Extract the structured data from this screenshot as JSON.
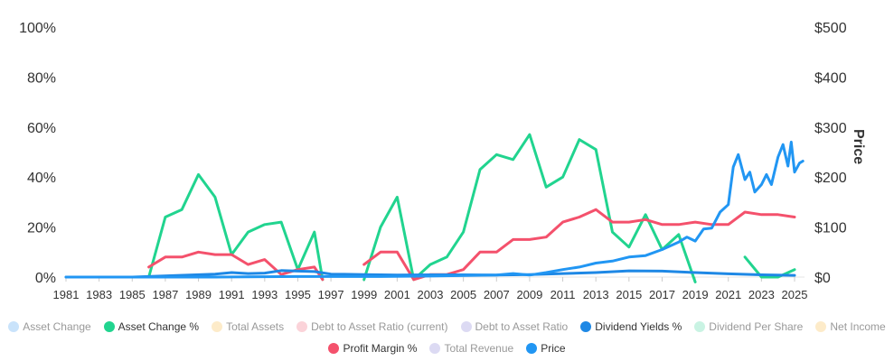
{
  "chart_data": {
    "type": "line",
    "title": "",
    "left_axis": {
      "ticks": [
        "0%",
        "20%",
        "40%",
        "60%",
        "80%",
        "100%"
      ],
      "ylim": [
        0,
        100
      ]
    },
    "right_axis": {
      "label": "Price",
      "ticks": [
        "$0",
        "$100",
        "$200",
        "$300",
        "$400",
        "$500"
      ],
      "ylim": [
        0,
        500
      ]
    },
    "x_ticks": [
      "1981",
      "1983",
      "1985",
      "1987",
      "1989",
      "1991",
      "1993",
      "1995",
      "1997",
      "1999",
      "2001",
      "2003",
      "2005",
      "2007",
      "2009",
      "2011",
      "2013",
      "2015",
      "2017",
      "2019",
      "2021",
      "2023",
      "2025"
    ],
    "xlim": [
      1981,
      2025.6
    ],
    "series": [
      {
        "name": "Asset Change %",
        "color": "#21d48f",
        "axis": "left",
        "x": [
          1986,
          1987,
          1988,
          1989,
          1990,
          1991,
          1992,
          1993,
          1994,
          1995,
          1996,
          1996.5,
          1997,
          1998,
          1999,
          2000,
          2001,
          2002,
          2003,
          2004,
          2005,
          2006,
          2007,
          2008,
          2009,
          2010,
          2011,
          2012,
          2013,
          2014,
          2015,
          2016,
          2017,
          2018,
          2019,
          2020,
          2021,
          2022,
          2023,
          2024,
          2025
        ],
        "y": [
          0,
          24,
          27,
          41,
          32,
          9,
          18,
          21,
          22,
          3,
          18,
          -1,
          null,
          null,
          -1,
          20,
          32,
          -1,
          5,
          8,
          18,
          43,
          49,
          47,
          57,
          36,
          40,
          55,
          51,
          18,
          12,
          25,
          11,
          17,
          -2,
          null,
          null,
          8,
          0,
          0,
          3
        ]
      },
      {
        "name": "Profit Margin %",
        "color": "#f4516c",
        "axis": "left",
        "x": [
          1986,
          1987,
          1988,
          1989,
          1990,
          1991,
          1992,
          1993,
          1994,
          1995,
          1996,
          1996.5,
          1997,
          1998,
          1999,
          2000,
          2001,
          2002,
          2003,
          2004,
          2005,
          2006,
          2007,
          2008,
          2009,
          2010,
          2011,
          2012,
          2013,
          2014,
          2015,
          2016,
          2017,
          2018,
          2019,
          2020,
          2021,
          2022,
          2023,
          2024,
          2025
        ],
        "y": [
          4,
          8,
          8,
          10,
          9,
          9,
          5,
          7,
          1,
          3,
          4,
          -1,
          null,
          null,
          5,
          10,
          10,
          -1,
          1,
          1,
          3,
          10,
          10,
          15,
          15,
          16,
          22,
          24,
          27,
          22,
          22,
          23,
          21,
          21,
          22,
          21,
          21,
          26,
          25,
          25,
          24
        ]
      },
      {
        "name": "Dividend Yields %",
        "color": "#1e88e5",
        "axis": "left",
        "x": [
          1981,
          1985,
          1990,
          1991,
          1992,
          1993,
          1994,
          1995,
          1996,
          1997,
          1999,
          2001,
          2003,
          2005,
          2007,
          2009,
          2011,
          2013,
          2015,
          2017,
          2019,
          2021,
          2023,
          2025
        ],
        "y": [
          0,
          0,
          1.2,
          1.8,
          1.4,
          1.6,
          2.6,
          2.4,
          2.2,
          1.2,
          1.0,
          0.8,
          0.9,
          0.9,
          0.8,
          1.0,
          1.4,
          1.8,
          2.5,
          2.4,
          1.8,
          1.3,
          0.9,
          0.7
        ]
      },
      {
        "name": "Price",
        "color": "#2196f3",
        "axis": "right",
        "x": [
          1981,
          1985,
          1990,
          1995,
          2000,
          2003,
          2007,
          2008,
          2009,
          2010,
          2011,
          2012,
          2013,
          2014,
          2015,
          2016,
          2017,
          2018,
          2018.5,
          2019,
          2019.5,
          2020,
          2020.5,
          2021,
          2021.3,
          2021.6,
          2022,
          2022.3,
          2022.6,
          2023,
          2023.3,
          2023.6,
          2024,
          2024.3,
          2024.6,
          2024.8,
          2025,
          2025.3,
          2025.5
        ],
        "y": [
          0,
          0,
          0,
          1,
          1,
          2,
          4,
          7,
          4,
          9,
          15,
          20,
          28,
          32,
          40,
          43,
          55,
          70,
          80,
          72,
          96,
          98,
          130,
          145,
          220,
          245,
          195,
          210,
          170,
          185,
          205,
          185,
          240,
          265,
          222,
          270,
          210,
          228,
          232
        ]
      }
    ]
  },
  "legend": [
    {
      "label": "Asset Change",
      "color": "#c9e3fb",
      "active": false
    },
    {
      "label": "Asset Change %",
      "color": "#21d48f",
      "active": true
    },
    {
      "label": "Total Assets",
      "color": "#fdebc9",
      "active": false
    },
    {
      "label": "Debt to Asset Ratio (current)",
      "color": "#fbd3d9",
      "active": false
    },
    {
      "label": "Debt to Asset Ratio",
      "color": "#dcdaf3",
      "active": false
    },
    {
      "label": "Dividend Yields %",
      "color": "#1e88e5",
      "active": true
    },
    {
      "label": "Dividend Per Share",
      "color": "#c9f3e3",
      "active": false
    },
    {
      "label": "Net Income",
      "color": "#fdebc9",
      "active": false
    },
    {
      "label": "Profit Margin %",
      "color": "#f4516c",
      "active": true
    },
    {
      "label": "Total Revenue",
      "color": "#dcdaf3",
      "active": false
    },
    {
      "label": "Price",
      "color": "#2196f3",
      "active": true
    }
  ]
}
